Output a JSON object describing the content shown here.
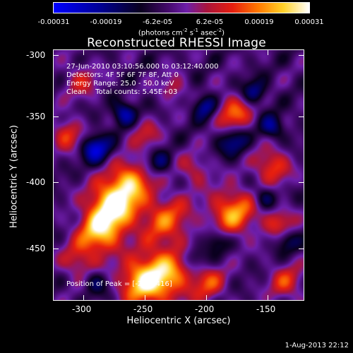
{
  "colorbar": {
    "tick_labels": [
      "-0.00031",
      "-0.00019",
      "-6.2e-05",
      "6.2e-05",
      "0.00019",
      "0.00031"
    ],
    "units_label": "(photons cm",
    "units_exp1": "-2",
    "units_mid": " s",
    "units_exp2": "-1",
    "units_tail": " asec",
    "units_exp3": "-2",
    "units_close": ")"
  },
  "title": "Reconstructed RHESSI Image",
  "info": {
    "time": "27-Jun-2010 03:10:56.000 to 03:12:40.000",
    "detectors": "Detectors: 4F 5F 6F 7F 8F, Att 0",
    "energy": "Energy Range: 25.0 - 50.0 keV",
    "clean": "Clean",
    "counts": "Total counts: 5.45E+03"
  },
  "peak": "Position of Peak = [-270,-416]",
  "axes": {
    "xlabel": "Heliocentric X (arcsec)",
    "ylabel": "Heliocentric Y (arcsec)",
    "xticks": [
      "-300",
      "-250",
      "-200",
      "-150"
    ],
    "yticks": [
      "-300",
      "-350",
      "-400",
      "-450"
    ]
  },
  "timestamp": "1-Aug-2013 22:12"
}
